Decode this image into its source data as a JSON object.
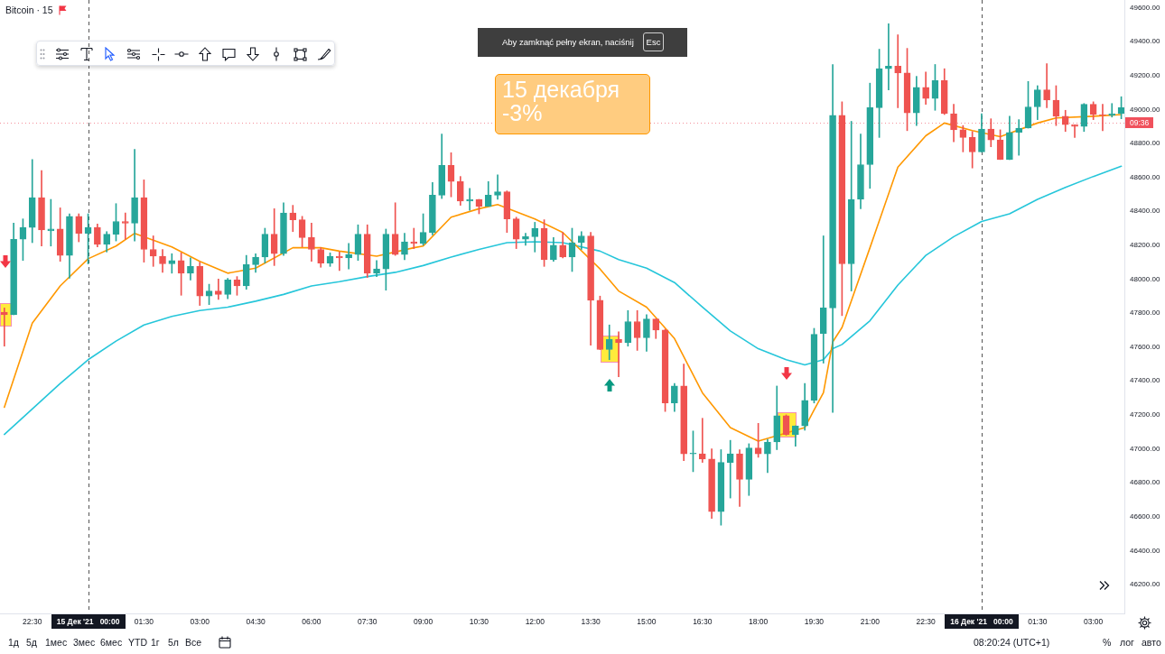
{
  "chart_data": {
    "type": "candlestick",
    "title": "Bitcoin · 15",
    "x": [
      "2021-12-14T21:45",
      "2021-12-14T22:00",
      "2021-12-14T22:15",
      "2021-12-14T22:30",
      "2021-12-14T22:45",
      "2021-12-14T23:00",
      "2021-12-14T23:15",
      "2021-12-14T23:30",
      "2021-12-14T23:45",
      "2021-12-15T00:00",
      "2021-12-15T00:15",
      "2021-12-15T00:30",
      "2021-12-15T00:45",
      "2021-12-15T01:00",
      "2021-12-15T01:15",
      "2021-12-15T01:30",
      "2021-12-15T01:45",
      "2021-12-15T02:00",
      "2021-12-15T02:15",
      "2021-12-15T02:30",
      "2021-12-15T02:45",
      "2021-12-15T03:00",
      "2021-12-15T03:15",
      "2021-12-15T03:30",
      "2021-12-15T03:45",
      "2021-12-15T04:00",
      "2021-12-15T04:15",
      "2021-12-15T04:30",
      "2021-12-15T04:45",
      "2021-12-15T05:00",
      "2021-12-15T05:15",
      "2021-12-15T05:30",
      "2021-12-15T05:45",
      "2021-12-15T06:00",
      "2021-12-15T06:15",
      "2021-12-15T06:30",
      "2021-12-15T06:45",
      "2021-12-15T07:00",
      "2021-12-15T07:15",
      "2021-12-15T07:30",
      "2021-12-15T07:45",
      "2021-12-15T08:00",
      "2021-12-15T08:15",
      "2021-12-15T08:30",
      "2021-12-15T08:45",
      "2021-12-15T09:00",
      "2021-12-15T09:15",
      "2021-12-15T09:30",
      "2021-12-15T09:45",
      "2021-12-15T10:00",
      "2021-12-15T10:15",
      "2021-12-15T10:30",
      "2021-12-15T10:45",
      "2021-12-15T11:00",
      "2021-12-15T11:15",
      "2021-12-15T11:30",
      "2021-12-15T11:45",
      "2021-12-15T12:00",
      "2021-12-15T12:15",
      "2021-12-15T12:30",
      "2021-12-15T12:45",
      "2021-12-15T13:00",
      "2021-12-15T13:15",
      "2021-12-15T13:30",
      "2021-12-15T13:45",
      "2021-12-15T14:00",
      "2021-12-15T14:15",
      "2021-12-15T14:30",
      "2021-12-15T14:45",
      "2021-12-15T15:00",
      "2021-12-15T15:15",
      "2021-12-15T15:30",
      "2021-12-15T15:45",
      "2021-12-15T16:00",
      "2021-12-15T16:15",
      "2021-12-15T16:30",
      "2021-12-15T16:45",
      "2021-12-15T17:00",
      "2021-12-15T17:15",
      "2021-12-15T17:30",
      "2021-12-15T17:45",
      "2021-12-15T18:00",
      "2021-12-15T18:15",
      "2021-12-15T18:30",
      "2021-12-15T18:45",
      "2021-12-15T19:00",
      "2021-12-15T19:15",
      "2021-12-15T19:30",
      "2021-12-15T19:45",
      "2021-12-15T20:00",
      "2021-12-15T20:15",
      "2021-12-15T20:30",
      "2021-12-15T20:45",
      "2021-12-15T21:00",
      "2021-12-15T21:15",
      "2021-12-15T21:30",
      "2021-12-15T21:45",
      "2021-12-15T22:00",
      "2021-12-15T22:15",
      "2021-12-15T22:30",
      "2021-12-15T22:45",
      "2021-12-15T23:00",
      "2021-12-15T23:15",
      "2021-12-15T23:30",
      "2021-12-15T23:45",
      "2021-12-16T00:00",
      "2021-12-16T00:15",
      "2021-12-16T00:30",
      "2021-12-16T00:45",
      "2021-12-16T01:00",
      "2021-12-16T01:15",
      "2021-12-16T01:30",
      "2021-12-16T01:45",
      "2021-12-16T02:00",
      "2021-12-16T02:15",
      "2021-12-16T02:30",
      "2021-12-16T02:45",
      "2021-12-16T03:00",
      "2021-12-16T03:15",
      "2021-12-16T03:30",
      "2021-12-16T03:45"
    ],
    "ohlc": [
      [
        47805,
        47830,
        47605,
        47790
      ],
      [
        47790,
        48330,
        47790,
        48235
      ],
      [
        48235,
        48355,
        48110,
        48305
      ],
      [
        48305,
        48705,
        48215,
        48480
      ],
      [
        48480,
        48640,
        48195,
        48290
      ],
      [
        48285,
        48470,
        48195,
        48295
      ],
      [
        48295,
        48420,
        48105,
        48140
      ],
      [
        48140,
        48385,
        48005,
        48370
      ],
      [
        48370,
        48385,
        48220,
        48270
      ],
      [
        48270,
        48385,
        48090,
        48305
      ],
      [
        48305,
        48325,
        48190,
        48205
      ],
      [
        48205,
        48280,
        48160,
        48265
      ],
      [
        48265,
        48445,
        48225,
        48340
      ],
      [
        48340,
        48390,
        48235,
        48330
      ],
      [
        48330,
        48765,
        48225,
        48480
      ],
      [
        48480,
        48585,
        48100,
        48175
      ],
      [
        48175,
        48255,
        48075,
        48135
      ],
      [
        48135,
        48175,
        48040,
        48090
      ],
      [
        48090,
        48150,
        48035,
        48110
      ],
      [
        48110,
        48155,
        47905,
        48035
      ],
      [
        48035,
        48125,
        47995,
        48075
      ],
      [
        48075,
        48100,
        47845,
        47900
      ],
      [
        47900,
        47970,
        47850,
        47930
      ],
      [
        47930,
        48000,
        47880,
        47910
      ],
      [
        47910,
        48005,
        47885,
        47995
      ],
      [
        47995,
        48015,
        47905,
        47960
      ],
      [
        47960,
        48140,
        47940,
        48085
      ],
      [
        48085,
        48150,
        48040,
        48130
      ],
      [
        48130,
        48300,
        48095,
        48265
      ],
      [
        48265,
        48415,
        48080,
        48150
      ],
      [
        48150,
        48450,
        48140,
        48390
      ],
      [
        48390,
        48435,
        48280,
        48350
      ],
      [
        48350,
        48370,
        48190,
        48245
      ],
      [
        48245,
        48330,
        48105,
        48175
      ],
      [
        48175,
        48185,
        48070,
        48095
      ],
      [
        48095,
        48155,
        48075,
        48135
      ],
      [
        48135,
        48160,
        48050,
        48125
      ],
      [
        48125,
        48210,
        48060,
        48145
      ],
      [
        48145,
        48320,
        48110,
        48265
      ],
      [
        48265,
        48320,
        48010,
        48035
      ],
      [
        48035,
        48110,
        48015,
        48060
      ],
      [
        48060,
        48295,
        47935,
        48265
      ],
      [
        48265,
        48450,
        48140,
        48145
      ],
      [
        48145,
        48270,
        48115,
        48220
      ],
      [
        48220,
        48300,
        48180,
        48210
      ],
      [
        48210,
        48385,
        48200,
        48275
      ],
      [
        48275,
        48570,
        48260,
        48495
      ],
      [
        48495,
        48855,
        48475,
        48670
      ],
      [
        48670,
        48745,
        48485,
        48575
      ],
      [
        48575,
        48605,
        48435,
        48460
      ],
      [
        48460,
        48535,
        48405,
        48470
      ],
      [
        48470,
        48470,
        48385,
        48430
      ],
      [
        48430,
        48575,
        48430,
        48495
      ],
      [
        48495,
        48615,
        48470,
        48515
      ],
      [
        48515,
        48520,
        48275,
        48355
      ],
      [
        48355,
        48365,
        48180,
        48235
      ],
      [
        48235,
        48270,
        48200,
        48250
      ],
      [
        48250,
        48335,
        48160,
        48300
      ],
      [
        48300,
        48350,
        48075,
        48115
      ],
      [
        48115,
        48245,
        48105,
        48200
      ],
      [
        48200,
        48275,
        48125,
        48130
      ],
      [
        48130,
        48300,
        48045,
        48215
      ],
      [
        48215,
        48280,
        48175,
        48255
      ],
      [
        48255,
        48275,
        47610,
        47875
      ],
      [
        47875,
        47900,
        47585,
        47585
      ],
      [
        47585,
        47730,
        47525,
        47645
      ],
      [
        47645,
        47690,
        47425,
        47625
      ],
      [
        47625,
        47815,
        47605,
        47750
      ],
      [
        47750,
        47815,
        47580,
        47655
      ],
      [
        47655,
        47790,
        47575,
        47765
      ],
      [
        47765,
        47765,
        47650,
        47700
      ],
      [
        47700,
        47705,
        47220,
        47270
      ],
      [
        47270,
        47385,
        47220,
        47370
      ],
      [
        47370,
        47500,
        46930,
        46970
      ],
      [
        46970,
        47105,
        46865,
        46975
      ],
      [
        46970,
        47180,
        46920,
        46940
      ],
      [
        46940,
        47000,
        46590,
        46630
      ],
      [
        46630,
        46995,
        46550,
        46920
      ],
      [
        46920,
        47050,
        46710,
        46970
      ],
      [
        46970,
        46995,
        46660,
        46820
      ],
      [
        46820,
        47030,
        46725,
        47005
      ],
      [
        47005,
        47150,
        46950,
        46970
      ],
      [
        46970,
        47055,
        46860,
        47040
      ],
      [
        47040,
        47370,
        46995,
        47195
      ],
      [
        47195,
        47200,
        47080,
        47085
      ],
      [
        47085,
        47135,
        47015,
        47135
      ],
      [
        47135,
        47385,
        47110,
        47285
      ],
      [
        47285,
        47710,
        47270,
        47675
      ],
      [
        47680,
        48255,
        47505,
        47830
      ],
      [
        47830,
        49265,
        47215,
        48965
      ],
      [
        48965,
        49045,
        47785,
        48090
      ],
      [
        48090,
        48930,
        47930,
        48470
      ],
      [
        48470,
        48855,
        48415,
        48675
      ],
      [
        48675,
        49155,
        48535,
        49010
      ],
      [
        49010,
        49355,
        48835,
        49240
      ],
      [
        49240,
        49505,
        49115,
        49255
      ],
      [
        49255,
        49440,
        49010,
        49215
      ],
      [
        49215,
        49360,
        48875,
        48980
      ],
      [
        48980,
        49195,
        48905,
        49130
      ],
      [
        49130,
        49220,
        49030,
        49065
      ],
      [
        49065,
        49265,
        48995,
        49170
      ],
      [
        49170,
        49240,
        48970,
        48975
      ],
      [
        48975,
        49030,
        48810,
        48880
      ],
      [
        48880,
        48905,
        48750,
        48835
      ],
      [
        48835,
        48870,
        48655,
        48750
      ],
      [
        48750,
        48975,
        48750,
        48885
      ],
      [
        48885,
        48945,
        48780,
        48820
      ],
      [
        48820,
        48880,
        48705,
        48705
      ],
      [
        48705,
        48960,
        48705,
        48865
      ],
      [
        48865,
        48940,
        48730,
        48890
      ],
      [
        48890,
        49165,
        48890,
        49015
      ],
      [
        49015,
        49140,
        48940,
        49115
      ],
      [
        49115,
        49270,
        49010,
        49055
      ],
      [
        49055,
        49140,
        48905,
        48960
      ],
      [
        48960,
        48995,
        48870,
        48910
      ],
      [
        48910,
        48910,
        48835,
        48900
      ],
      [
        48900,
        49035,
        48870,
        49030
      ],
      [
        49030,
        49045,
        48940,
        48970
      ],
      [
        48970,
        49030,
        48875,
        48965
      ],
      [
        48965,
        49035,
        48955,
        48975
      ],
      [
        48975,
        49075,
        48945,
        49010
      ]
    ],
    "colors": [
      "#ef5350",
      "#26a69a",
      "#26a69a",
      "#26a69a",
      "#ef5350",
      "#26a69a",
      "#ef5350",
      "#26a69a",
      "#ef5350",
      "#26a69a",
      "#ef5350",
      "#26a69a",
      "#26a69a",
      "#ef5350",
      "#26a69a",
      "#ef5350",
      "#ef5350",
      "#ef5350",
      "#26a69a",
      "#ef5350",
      "#26a69a",
      "#ef5350",
      "#26a69a",
      "#ef5350",
      "#26a69a",
      "#ef5350",
      "#26a69a",
      "#26a69a",
      "#26a69a",
      "#ef5350",
      "#26a69a",
      "#ef5350",
      "#ef5350",
      "#ef5350",
      "#ef5350",
      "#26a69a",
      "#ef5350",
      "#26a69a",
      "#26a69a",
      "#ef5350",
      "#26a69a",
      "#26a69a",
      "#ef5350",
      "#26a69a",
      "#ef5350",
      "#26a69a",
      "#26a69a",
      "#26a69a",
      "#ef5350",
      "#ef5350",
      "#26a69a",
      "#ef5350",
      "#26a69a",
      "#26a69a",
      "#ef5350",
      "#ef5350",
      "#26a69a",
      "#26a69a",
      "#ef5350",
      "#26a69a",
      "#ef5350",
      "#26a69a",
      "#26a69a",
      "#ef5350",
      "#ef5350",
      "#26a69a",
      "#ef5350",
      "#26a69a",
      "#ef5350",
      "#26a69a",
      "#ef5350",
      "#ef5350",
      "#26a69a",
      "#ef5350",
      "#26a69a",
      "#ef5350",
      "#ef5350",
      "#26a69a",
      "#26a69a",
      "#ef5350",
      "#26a69a",
      "#ef5350",
      "#26a69a",
      "#26a69a",
      "#ef5350",
      "#26a69a",
      "#26a69a",
      "#26a69a",
      "#26a69a",
      "#26a69a",
      "#ef5350",
      "#26a69a",
      "#26a69a",
      "#26a69a",
      "#26a69a",
      "#26a69a",
      "#ef5350",
      "#ef5350",
      "#26a69a",
      "#ef5350",
      "#26a69a",
      "#ef5350",
      "#ef5350",
      "#ef5350",
      "#ef5350",
      "#26a69a",
      "#ef5350",
      "#ef5350",
      "#26a69a",
      "#26a69a",
      "#26a69a",
      "#26a69a",
      "#ef5350",
      "#ef5350",
      "#ef5350",
      "#ef5350",
      "#26a69a",
      "#ef5350",
      "#ef5350",
      "#26a69a",
      "#26a69a"
    ],
    "series": [
      {
        "type": "line",
        "color": "#ff9800",
        "x": [
          "2021-12-14T21:45",
          "2021-12-14T22:30",
          "2021-12-14T23:15",
          "2021-12-15T00:00",
          "2021-12-15T00:45",
          "2021-12-15T01:15",
          "2021-12-15T02:15",
          "2021-12-15T03:00",
          "2021-12-15T03:45",
          "2021-12-15T04:30",
          "2021-12-15T05:30",
          "2021-12-15T06:15",
          "2021-12-15T06:45",
          "2021-12-15T07:45",
          "2021-12-15T08:45",
          "2021-12-15T09:00",
          "2021-12-15T09:45",
          "2021-12-15T10:30",
          "2021-12-15T11:00",
          "2021-12-15T12:00",
          "2021-12-15T12:45",
          "2021-12-15T13:45",
          "2021-12-15T14:15",
          "2021-12-15T15:00",
          "2021-12-15T15:45",
          "2021-12-15T16:30",
          "2021-12-15T17:15",
          "2021-12-15T18:00",
          "2021-12-15T19:15",
          "2021-12-15T19:30",
          "2021-12-15T19:45",
          "2021-12-15T20:00",
          "2021-12-15T20:15",
          "2021-12-15T21:00",
          "2021-12-15T21:45",
          "2021-12-15T22:30",
          "2021-12-15T23:00",
          "2021-12-15T23:45",
          "2021-12-16T00:30",
          "2021-12-16T01:30",
          "2021-12-16T02:00",
          "2021-12-16T03:00",
          "2021-12-16T03:45"
        ],
        "values": [
          47245,
          47740,
          47960,
          48120,
          48195,
          48270,
          48190,
          48105,
          48035,
          48065,
          48185,
          48185,
          48165,
          48135,
          48185,
          48195,
          48365,
          48415,
          48440,
          48355,
          48275,
          48060,
          47930,
          47835,
          47650,
          47330,
          47125,
          47045,
          47125,
          47230,
          47330,
          47630,
          47715,
          48185,
          48660,
          48845,
          48920,
          48875,
          48840,
          48920,
          48950,
          48960,
          48970
        ]
      },
      {
        "type": "line",
        "color": "#26c6da",
        "x": [
          "2021-12-14T21:45",
          "2021-12-14T22:30",
          "2021-12-14T23:15",
          "2021-12-15T00:00",
          "2021-12-15T00:45",
          "2021-12-15T01:30",
          "2021-12-15T02:15",
          "2021-12-15T03:00",
          "2021-12-15T03:45",
          "2021-12-15T04:30",
          "2021-12-15T05:15",
          "2021-12-15T06:00",
          "2021-12-15T06:45",
          "2021-12-15T07:30",
          "2021-12-15T08:15",
          "2021-12-15T09:00",
          "2021-12-15T09:45",
          "2021-12-15T10:30",
          "2021-12-15T11:15",
          "2021-12-15T12:00",
          "2021-12-15T12:45",
          "2021-12-15T13:45",
          "2021-12-15T14:15",
          "2021-12-15T15:00",
          "2021-12-15T15:45",
          "2021-12-15T16:30",
          "2021-12-15T17:15",
          "2021-12-15T18:00",
          "2021-12-15T18:45",
          "2021-12-15T19:15",
          "2021-12-15T19:45",
          "2021-12-15T20:00",
          "2021-12-15T20:15",
          "2021-12-15T21:00",
          "2021-12-15T21:45",
          "2021-12-15T22:30",
          "2021-12-15T23:15",
          "2021-12-16T00:00",
          "2021-12-16T00:45",
          "2021-12-16T01:30",
          "2021-12-16T02:15",
          "2021-12-16T03:00",
          "2021-12-16T03:45"
        ],
        "values": [
          47085,
          47235,
          47385,
          47525,
          47635,
          47730,
          47780,
          47815,
          47835,
          47870,
          47910,
          47960,
          47985,
          48015,
          48040,
          48080,
          48130,
          48175,
          48215,
          48220,
          48215,
          48165,
          48115,
          48065,
          47980,
          47835,
          47695,
          47590,
          47525,
          47495,
          47525,
          47590,
          47615,
          47755,
          47965,
          48140,
          48250,
          48340,
          48385,
          48470,
          48540,
          48605,
          48665
        ]
      }
    ],
    "xlim": [
      "2021-12-14T21:38",
      "2021-12-16T03:50"
    ],
    "xticks": [
      {
        "value": "2021-12-14T22:30",
        "label": "22:30"
      },
      {
        "value": "2021-12-15T01:30",
        "label": "01:30"
      },
      {
        "value": "2021-12-15T03:00",
        "label": "03:00"
      },
      {
        "value": "2021-12-15T04:30",
        "label": "04:30"
      },
      {
        "value": "2021-12-15T06:00",
        "label": "06:00"
      },
      {
        "value": "2021-12-15T07:30",
        "label": "07:30"
      },
      {
        "value": "2021-12-15T09:00",
        "label": "09:00"
      },
      {
        "value": "2021-12-15T10:30",
        "label": "10:30"
      },
      {
        "value": "2021-12-15T12:00",
        "label": "12:00"
      },
      {
        "value": "2021-12-15T13:30",
        "label": "13:30"
      },
      {
        "value": "2021-12-15T15:00",
        "label": "15:00"
      },
      {
        "value": "2021-12-15T16:30",
        "label": "16:30"
      },
      {
        "value": "2021-12-15T18:00",
        "label": "18:00"
      },
      {
        "value": "2021-12-15T19:30",
        "label": "19:30"
      },
      {
        "value": "2021-12-15T21:00",
        "label": "21:00"
      },
      {
        "value": "2021-12-15T22:30",
        "label": "22:30"
      },
      {
        "value": "2021-12-16T01:30",
        "label": "01:30"
      },
      {
        "value": "2021-12-16T03:00",
        "label": "03:00"
      }
    ],
    "ylim": [
      46030,
      49645
    ],
    "yticks": [
      {
        "value": 46200,
        "label": "46200.00"
      },
      {
        "value": 46400,
        "label": "46400.00"
      },
      {
        "value": 46600,
        "label": "46600.00"
      },
      {
        "value": 46800,
        "label": "46800.00"
      },
      {
        "value": 47000,
        "label": "47000.00"
      },
      {
        "value": 47200,
        "label": "47200.00"
      },
      {
        "value": 47400,
        "label": "47400.00"
      },
      {
        "value": 47600,
        "label": "47600.00"
      },
      {
        "value": 47800,
        "label": "47800.00"
      },
      {
        "value": 48000,
        "label": "48000.00"
      },
      {
        "value": 48200,
        "label": "48200.00"
      },
      {
        "value": 48400,
        "label": "48400.00"
      },
      {
        "value": 48600,
        "label": "48600.00"
      },
      {
        "value": 48800,
        "label": "48800.00"
      },
      {
        "value": 49000,
        "label": "49000.00"
      },
      {
        "value": 49200,
        "label": "49200.00"
      },
      {
        "value": 49400,
        "label": "49400.00"
      },
      {
        "value": 49600,
        "label": "49600.00"
      }
    ],
    "ref_lines": [
      {
        "axis": "x",
        "value": "2021-12-15T00:00",
        "label": "15 Дек '21   00:00",
        "color": "#555555",
        "line_style": "dashed"
      },
      {
        "axis": "x",
        "value": "2021-12-16T00:00",
        "label": "16 Дек '21   00:00",
        "color": "#555555",
        "line_style": "dashed"
      },
      {
        "axis": "y",
        "value": 48920,
        "color": "#f4919b",
        "line_style": "dotted"
      }
    ],
    "annotations": [
      "15 декабря\n-3%",
      "Aby zamknąć pełny ekran, naciśnij",
      "Esc",
      "1д",
      "5д",
      "1мес",
      "3мес",
      "6мес",
      "YTD",
      "1г",
      "5л",
      "Все",
      "08:20:24 (UTC+1)",
      "%",
      "лог",
      "авто",
      {
        "text": "09:36",
        "y": 48920
      }
    ],
    "legend": false,
    "grid": false,
    "marker": "none"
  }
}
